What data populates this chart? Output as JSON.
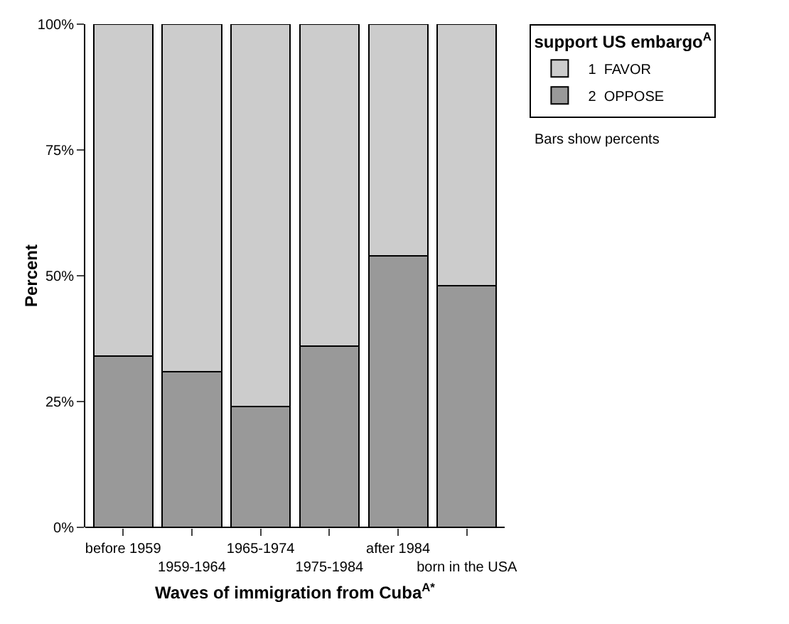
{
  "chart_data": {
    "type": "bar",
    "stacked": true,
    "xlabel": "Waves of immigration from Cuba$^{A*}$",
    "ylabel": "Percent",
    "legend_title": "support US embargo$^{A}$",
    "legend": "top right",
    "grid": false,
    "categories": [
      "before 1959",
      "1959-1964",
      "1965-1974",
      "1975-1984",
      "after 1984",
      "born in the USA"
    ],
    "series": [
      {
        "name": "2  OPPOSE",
        "color": "#999999",
        "values": [
          34,
          31,
          24,
          36,
          54,
          48
        ]
      },
      {
        "name": "1  FAVOR",
        "color": "#cccccc",
        "values": [
          66,
          69,
          76,
          64,
          46,
          52
        ]
      }
    ],
    "ylim": [
      0,
      100
    ],
    "yticks": [
      {
        "value": 0,
        "label": "0%"
      },
      {
        "value": 25,
        "label": "25%"
      },
      {
        "value": 50,
        "label": "50%"
      },
      {
        "value": 75,
        "label": "75%"
      },
      {
        "value": 100,
        "label": "100%"
      }
    ],
    "annotations": [
      "Bars show percents"
    ]
  }
}
